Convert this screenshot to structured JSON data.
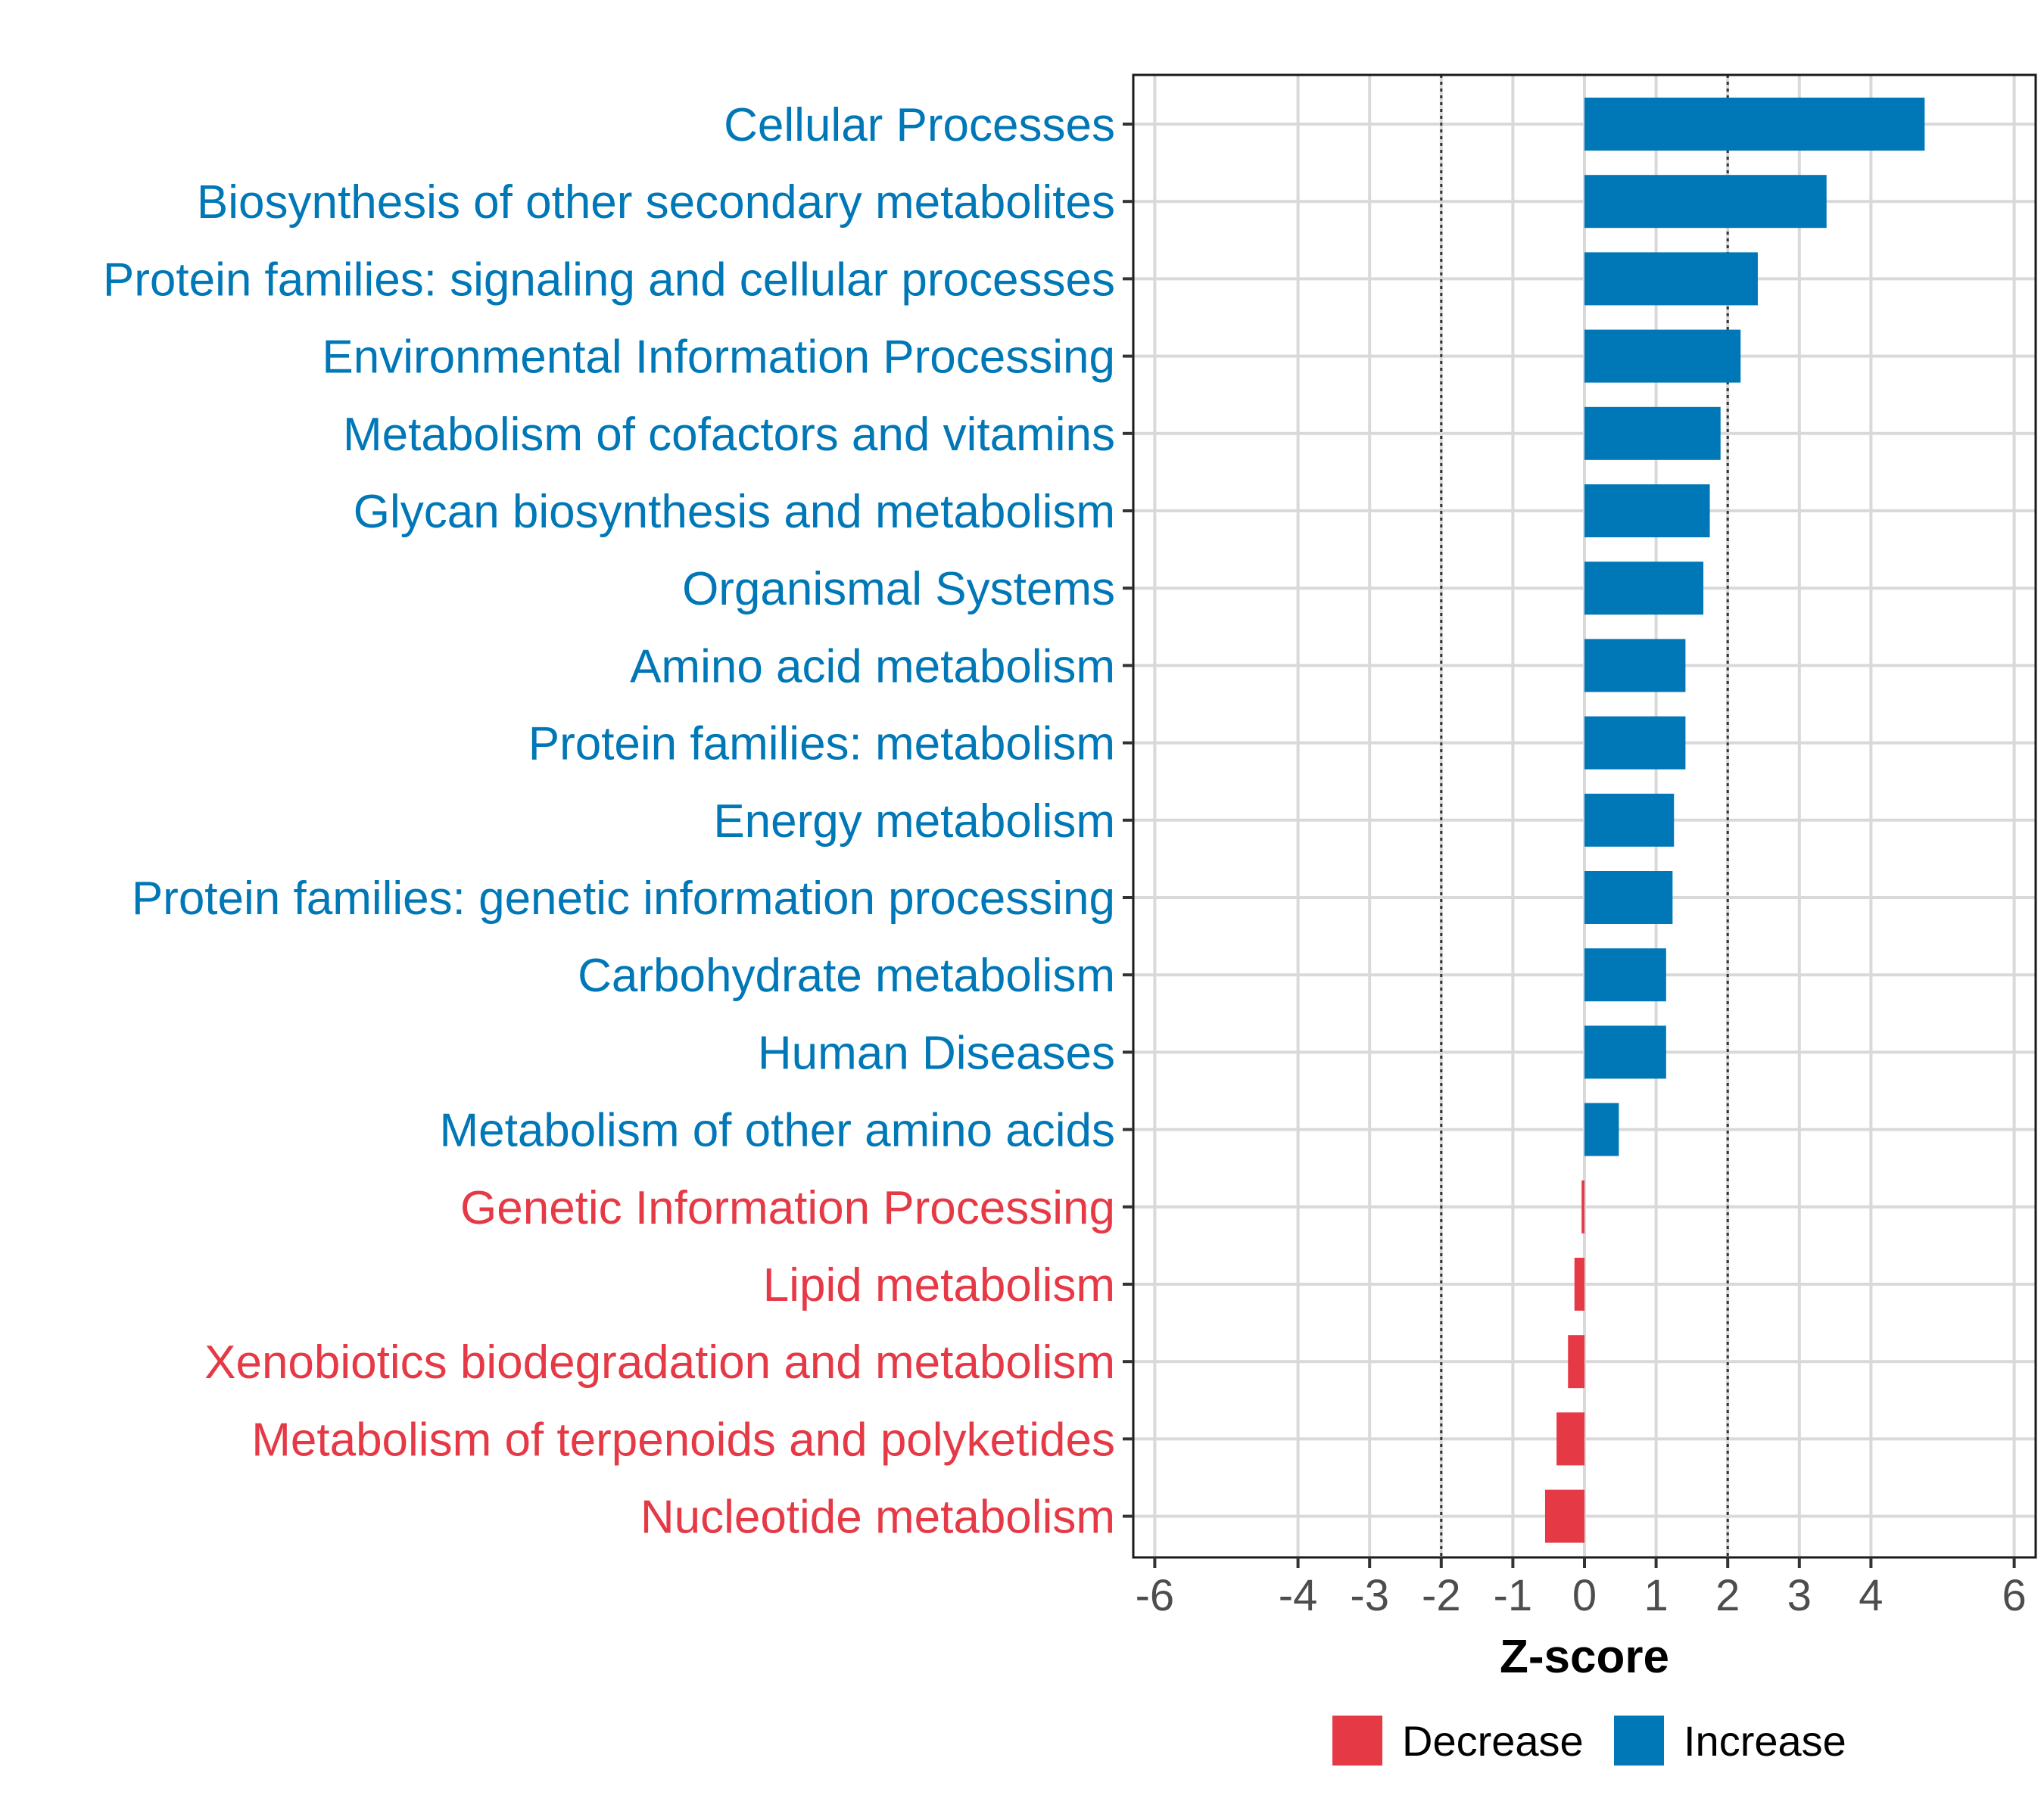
{
  "chart_data": {
    "type": "bar",
    "orientation": "horizontal",
    "title": "",
    "xlabel": "Z-score",
    "ylabel": "",
    "xlim": [
      -6.3,
      6.3
    ],
    "x_ticks": [
      -6,
      -4,
      -3,
      -2,
      -1,
      0,
      1,
      2,
      3,
      4,
      6
    ],
    "x_tick_labels": [
      "-6",
      "-4",
      "-3",
      "-2",
      "-1",
      "0",
      "1",
      "2",
      "3",
      "4",
      "6"
    ],
    "reference_lines": [
      -2,
      2
    ],
    "grid": true,
    "legend_position": "bottom",
    "colors": {
      "Decrease": "#E63946",
      "Increase": "#0077B6"
    },
    "legend": [
      {
        "label": "Decrease",
        "color": "#E63946"
      },
      {
        "label": "Increase",
        "color": "#0077B6"
      }
    ],
    "categories": [
      "Cellular Processes",
      "Biosynthesis of other secondary metabolites",
      "Protein families: signaling and cellular processes",
      "Environmental Information Processing",
      "Metabolism of cofactors and vitamins",
      "Glycan biosynthesis and metabolism",
      "Organismal Systems",
      "Amino acid metabolism",
      "Protein families: metabolism",
      "Energy metabolism",
      "Protein families: genetic information processing",
      "Carbohydrate metabolism",
      "Human Diseases",
      "Metabolism of other amino acids",
      "Genetic Information Processing",
      "Lipid metabolism",
      "Xenobiotics biodegradation and metabolism",
      "Metabolism of terpenoids and polyketides",
      "Nucleotide metabolism"
    ],
    "values": [
      4.75,
      3.38,
      2.42,
      2.18,
      1.9,
      1.75,
      1.66,
      1.41,
      1.41,
      1.25,
      1.23,
      1.14,
      1.14,
      0.48,
      -0.04,
      -0.14,
      -0.23,
      -0.39,
      -0.55
    ],
    "groups": [
      "Increase",
      "Increase",
      "Increase",
      "Increase",
      "Increase",
      "Increase",
      "Increase",
      "Increase",
      "Increase",
      "Increase",
      "Increase",
      "Increase",
      "Increase",
      "Increase",
      "Decrease",
      "Decrease",
      "Decrease",
      "Decrease",
      "Decrease"
    ]
  }
}
